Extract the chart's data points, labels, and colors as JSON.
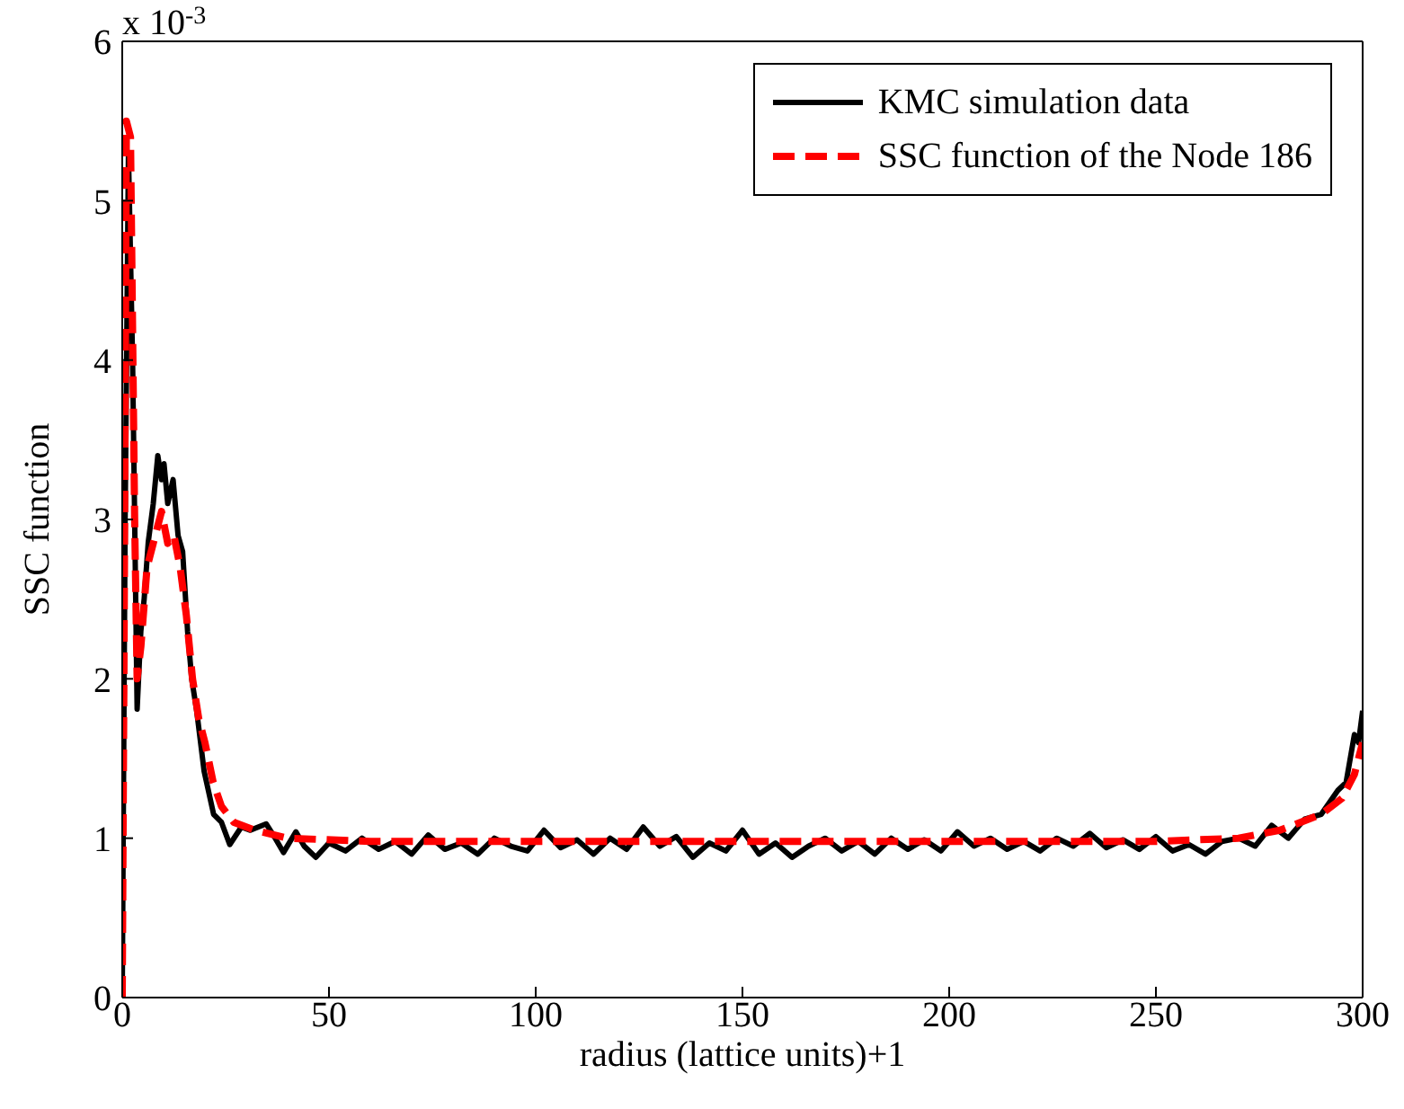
{
  "chart_data": {
    "type": "line",
    "xlabel": "radius (lattice units)+1",
    "ylabel": "SSC function",
    "annotations": [
      "x 10$^{-3}$"
    ],
    "xlim": [
      0,
      300
    ],
    "xticks": [
      0,
      50,
      100,
      150,
      200,
      250,
      300
    ],
    "ylim": [
      0,
      6
    ],
    "yticks": [
      0,
      1,
      2,
      3,
      4,
      5,
      6
    ],
    "legend": "top right",
    "marker": "none",
    "series": [
      {
        "name": "KMC simulation data",
        "color": "#000000",
        "line_style": "solid",
        "x": [
          0,
          0.7,
          1.5,
          2.5,
          3.6,
          4.5,
          5.3,
          6.3,
          7.5,
          8.6,
          9.5,
          10.1,
          11,
          12.3,
          13.5,
          14.6,
          15.8,
          16.8,
          18,
          19.8,
          22.1,
          24,
          26,
          28.8,
          31,
          34.8,
          37,
          39,
          42,
          44,
          46.8,
          50,
          54,
          58,
          62,
          66,
          70,
          74,
          78,
          82,
          86,
          90,
          94,
          98,
          102,
          106,
          110,
          114,
          118,
          122,
          126,
          130,
          134,
          138,
          142,
          146,
          150,
          154,
          158,
          162,
          166,
          170,
          174,
          178,
          182,
          186,
          190,
          194,
          198,
          202,
          206,
          210,
          214,
          218,
          222,
          226,
          230,
          234,
          238,
          242,
          246,
          250,
          254,
          258,
          262,
          266,
          270,
          274,
          278,
          282,
          286,
          290,
          294,
          296,
          298,
          299,
          300
        ],
        "values": [
          0,
          3,
          5.3,
          4.0,
          1.81,
          2.3,
          2.5,
          2.86,
          3.1,
          3.4,
          3.25,
          3.35,
          3.1,
          3.25,
          2.9,
          2.8,
          2.3,
          2.0,
          1.8,
          1.42,
          1.15,
          1.1,
          0.96,
          1.07,
          1.05,
          1.09,
          1.0,
          0.91,
          1.04,
          0.95,
          0.88,
          0.97,
          0.92,
          1.0,
          0.93,
          0.98,
          0.9,
          1.02,
          0.93,
          0.97,
          0.9,
          1.0,
          0.95,
          0.92,
          1.05,
          0.94,
          0.99,
          0.9,
          1.0,
          0.93,
          1.07,
          0.95,
          1.01,
          0.88,
          0.97,
          0.92,
          1.05,
          0.9,
          0.97,
          0.88,
          0.95,
          1.0,
          0.92,
          0.98,
          0.9,
          1.0,
          0.93,
          0.99,
          0.92,
          1.04,
          0.95,
          1.0,
          0.93,
          0.98,
          0.92,
          1.0,
          0.95,
          1.03,
          0.94,
          0.99,
          0.93,
          1.01,
          0.92,
          0.96,
          0.9,
          0.98,
          1.0,
          0.95,
          1.08,
          1.0,
          1.12,
          1.15,
          1.3,
          1.35,
          1.65,
          1.6,
          1.8
        ]
      },
      {
        "name": "SSC function of the Node 186",
        "color": "#ff0000",
        "line_style": "dashed",
        "x": [
          0,
          0.5,
          1,
          2,
          3,
          3.6,
          4.5,
          6,
          8,
          9.5,
          11,
          12.5,
          14,
          15.5,
          17,
          18.5,
          20,
          22,
          24,
          27,
          32,
          40,
          60,
          100,
          150,
          200,
          250,
          270,
          280,
          290,
          295,
          298,
          300
        ],
        "values": [
          0,
          2.5,
          5.5,
          5.4,
          3.0,
          2.0,
          2.2,
          2.7,
          2.9,
          3.05,
          2.85,
          2.9,
          2.7,
          2.4,
          2.0,
          1.75,
          1.6,
          1.35,
          1.2,
          1.1,
          1.05,
          1.0,
          0.98,
          0.98,
          0.98,
          0.98,
          0.98,
          1.0,
          1.05,
          1.15,
          1.25,
          1.4,
          1.6
        ]
      }
    ]
  }
}
